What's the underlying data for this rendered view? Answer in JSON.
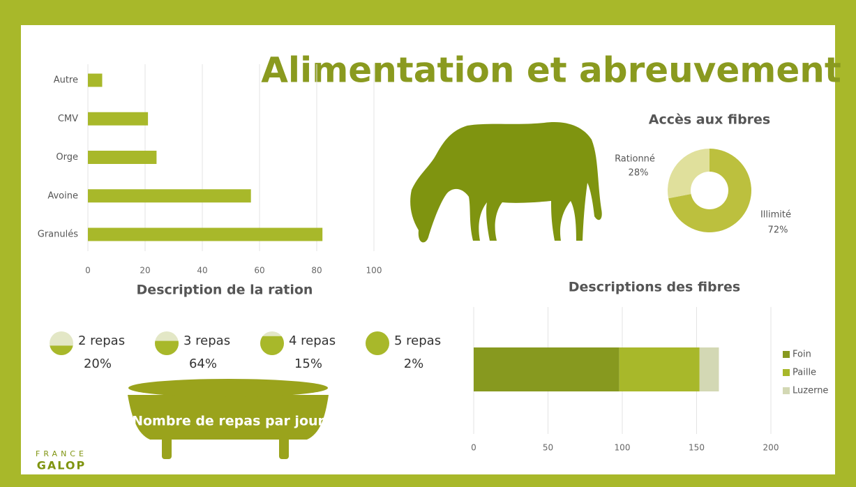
{
  "title": "Alimentation et abreuvement",
  "logo": {
    "line1": "FRANCE",
    "line2": "GALOP"
  },
  "chart_data": [
    {
      "type": "bar",
      "orientation": "horizontal",
      "title": "Description de la ration",
      "categories": [
        "Autre",
        "CMV",
        "Orge",
        "Avoine",
        "Granulés"
      ],
      "values": [
        5,
        21,
        24,
        57,
        82
      ],
      "color": "#a8b82a",
      "xlim": [
        0,
        100
      ],
      "xticks": [
        0,
        20,
        40,
        60,
        80,
        100
      ],
      "grid": true
    },
    {
      "type": "pie",
      "title": "Accès aux fibres",
      "categories": [
        "Rationné",
        "Illimité"
      ],
      "values": [
        28,
        72
      ],
      "value_labels": [
        "28%",
        "72%"
      ],
      "colors": [
        "#e0e09c",
        "#bcc03e"
      ],
      "donut": true
    },
    {
      "type": "stacked_bar",
      "orientation": "horizontal",
      "title": "Descriptions des fibres",
      "categories": [
        null
      ],
      "series": [
        {
          "name": "Foin",
          "color": "#87991f",
          "values": [
            98
          ]
        },
        {
          "name": "Paille",
          "color": "#a8b82a",
          "values": [
            54
          ]
        },
        {
          "name": "Luzerne",
          "color": "#d3d8b4",
          "values": [
            13
          ]
        }
      ],
      "xlim": [
        0,
        200
      ],
      "xticks": [
        0,
        50,
        100,
        150,
        200
      ],
      "grid": true,
      "legend": "right"
    },
    {
      "type": "pictogram",
      "title": "Nombre de repas par jour",
      "categories": [
        "2 repas",
        "3 repas",
        "4 repas",
        "5 repas"
      ],
      "values": [
        20,
        64,
        15,
        2
      ],
      "value_labels": [
        "20%",
        "64%",
        "15%",
        "2%"
      ],
      "color": "#a8b82a"
    }
  ]
}
